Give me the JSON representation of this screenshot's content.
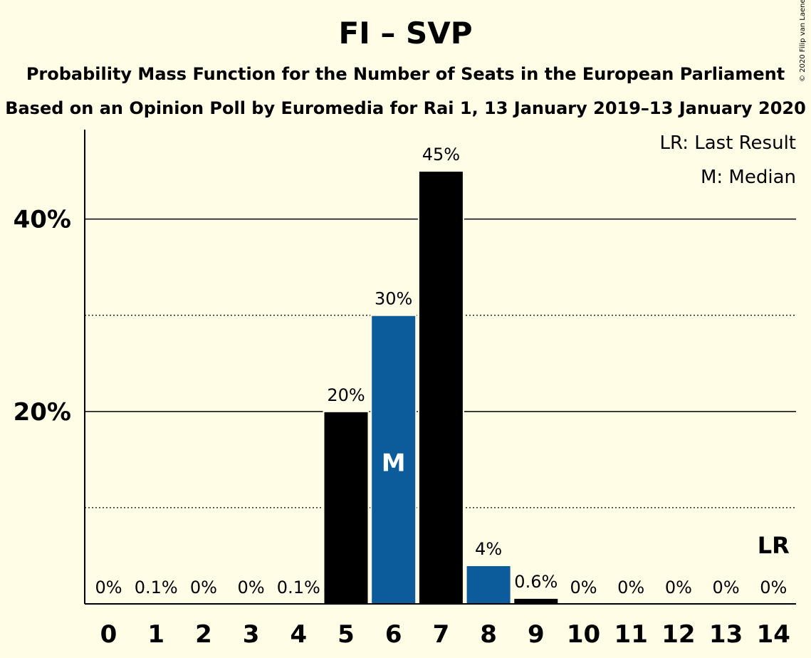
{
  "title": "FI – SVP",
  "subtitle1": "Probability Mass Function for the Number of Seats in the European Parliament",
  "subtitle2": "Based on an Opinion Poll by Euromedia for Rai 1, 13 January 2019–13 January 2020",
  "copyright": "© 2020 Filip van Laenen",
  "legend": {
    "last_result": "LR: Last Result",
    "median": "M: Median"
  },
  "colors": {
    "background": "#FFFDE6",
    "party": "#0C5C9C",
    "highlight": "#000000"
  },
  "chart_data": {
    "type": "bar",
    "categories": [
      "0",
      "1",
      "2",
      "3",
      "4",
      "5",
      "6",
      "7",
      "8",
      "9",
      "10",
      "11",
      "12",
      "13",
      "14"
    ],
    "values": [
      0,
      0.1,
      0,
      0,
      0.1,
      20,
      30,
      45,
      4,
      0.6,
      0,
      0,
      0,
      0,
      0
    ],
    "labels": [
      "0%",
      "0.1%",
      "0%",
      "0%",
      "0.1%",
      "20%",
      "30%",
      "45%",
      "4%",
      "0.6%",
      "0%",
      "0%",
      "0%",
      "0%",
      "0%"
    ],
    "bar_colors": [
      "party",
      "party",
      "party",
      "party",
      "party",
      "highlight",
      "party",
      "highlight",
      "party",
      "highlight",
      "party",
      "party",
      "party",
      "party",
      "party"
    ],
    "ylim": [
      0,
      49.3
    ],
    "yticks": [
      {
        "value": 20,
        "label": "20%"
      },
      {
        "value": 40,
        "label": "40%"
      }
    ],
    "minor_gridlines": [
      10,
      30
    ],
    "median_seat": 6,
    "median_marker": "M",
    "last_result_seat": 14,
    "last_result_marker": "LR"
  }
}
